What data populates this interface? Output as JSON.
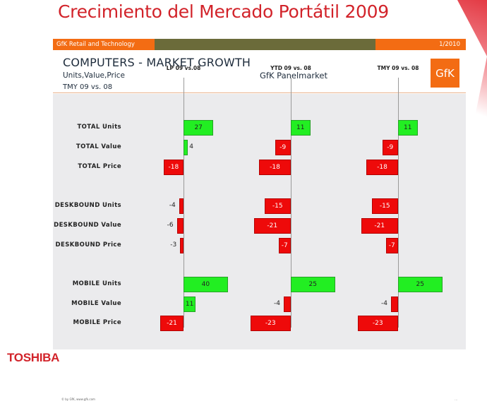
{
  "slide": {
    "title": "Crecimiento del Mercado Portátil 2009",
    "brand": "TOSHIBA"
  },
  "topbar": {
    "left_label": "GfK Retail and Technology",
    "right_label": "1/2010"
  },
  "header": {
    "title": "COMPUTERS - MARKET GROWTH",
    "subtitle": "Units,Value,Price",
    "period": "TMY 09 vs. 08",
    "panel": "GfK Panelmarket",
    "logo": "GfK"
  },
  "footer": {
    "left": "© by GfK, www.gfk.com",
    "right": "..."
  },
  "colors": {
    "positive": "#22ee22",
    "negative": "#ee0a0a",
    "accent_orange": "#f36c13",
    "title_red": "#d2232a"
  },
  "chart_data": {
    "type": "bar",
    "orientation": "horizontal",
    "title": "COMPUTERS - MARKET GROWTH",
    "subtitle": "Units,Value,Price",
    "categories": [
      "TOTAL Units",
      "TOTAL Value",
      "TOTAL Price",
      "DESKBOUND Units",
      "DESKBOUND Value",
      "DESKBOUND Price",
      "MOBILE Units",
      "MOBILE Value",
      "MOBILE Price"
    ],
    "series": [
      {
        "name": "LP 09 vs.08",
        "values": [
          27,
          4,
          -18,
          -4,
          -6,
          -3,
          40,
          11,
          -21
        ]
      },
      {
        "name": "YTD 09 vs. 08",
        "values": [
          11,
          -9,
          -18,
          -15,
          -21,
          -7,
          25,
          -4,
          -23
        ]
      },
      {
        "name": "TMY 09 vs. 08",
        "values": [
          11,
          -9,
          -18,
          -15,
          -21,
          -7,
          25,
          -4,
          -23
        ]
      }
    ],
    "xlabel": "",
    "ylabel": "",
    "grid": false,
    "legend": "column headers above each panel"
  }
}
